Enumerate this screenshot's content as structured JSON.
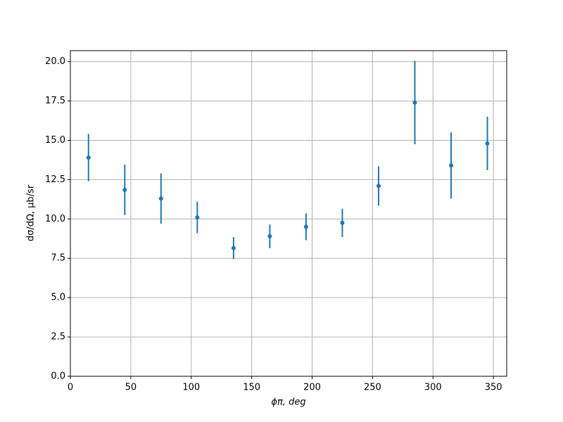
{
  "chart_data": {
    "type": "scatter",
    "xlabel": "ϕπ, deg",
    "ylabel": "dσ/dΩ, μb/sr",
    "x": [
      15,
      45,
      75,
      105,
      135,
      165,
      195,
      225,
      255,
      285,
      315,
      345
    ],
    "values": [
      13.9,
      11.85,
      11.3,
      10.1,
      8.15,
      8.9,
      9.5,
      9.75,
      12.1,
      17.4,
      13.4,
      14.8
    ],
    "errors": [
      1.5,
      1.6,
      1.6,
      1.0,
      0.7,
      0.75,
      0.85,
      0.9,
      1.25,
      2.65,
      2.1,
      1.7
    ],
    "color": "#1f77b4",
    "xlim": [
      0,
      361
    ],
    "ylim": [
      0,
      20.7
    ],
    "xticks": [
      0,
      50,
      100,
      150,
      200,
      250,
      300,
      350
    ],
    "yticks": [
      {
        "value": 0,
        "label": "0.0"
      },
      2.5,
      {
        "value": 5,
        "label": "5.0"
      },
      7.5,
      {
        "value": 10,
        "label": "10.0"
      },
      12.5,
      {
        "value": 15,
        "label": "15.0"
      },
      17.5,
      {
        "value": 20,
        "label": "20.0"
      }
    ],
    "grid": true
  }
}
